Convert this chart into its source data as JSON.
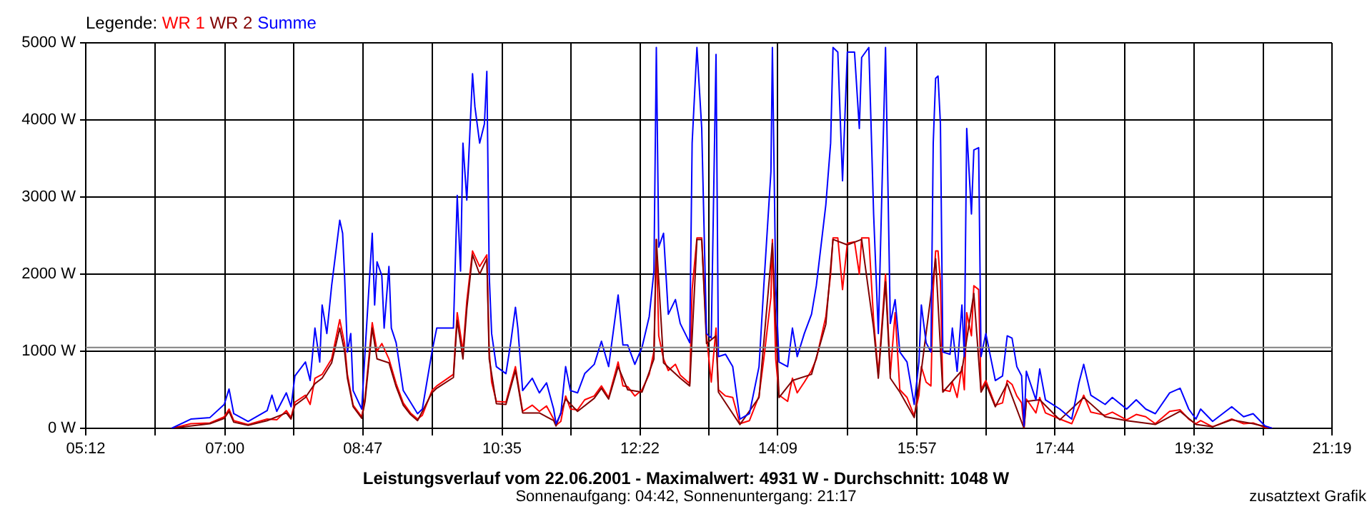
{
  "chart_data": {
    "type": "line",
    "title": "Leistungsverlauf vom 22.06.2001 - Maximalwert: 4931 W - Durchschnitt: 1048 W",
    "subtitle": "Sonnenaufgang: 04:42, Sonnenuntergang: 21:17",
    "legend_title": "Legende:",
    "annotations": [
      "zusatztext Grafik"
    ],
    "xlim": [
      5.2,
      21.3167
    ],
    "xticks": [
      {
        "value": 5.2,
        "label": "05:12"
      },
      {
        "value": 6.1,
        "label": null
      },
      {
        "value": 7.0,
        "label": "07:00"
      },
      {
        "value": 7.892,
        "label": null
      },
      {
        "value": 8.7833,
        "label": "08:47"
      },
      {
        "value": 9.683,
        "label": null
      },
      {
        "value": 10.5833,
        "label": "10:35"
      },
      {
        "value": 11.475,
        "label": null
      },
      {
        "value": 12.3667,
        "label": "12:22"
      },
      {
        "value": 13.258,
        "label": null
      },
      {
        "value": 14.15,
        "label": "14:09"
      },
      {
        "value": 15.05,
        "label": null
      },
      {
        "value": 15.95,
        "label": "15:57"
      },
      {
        "value": 16.842,
        "label": null
      },
      {
        "value": 17.7333,
        "label": "17:44"
      },
      {
        "value": 18.633,
        "label": null
      },
      {
        "value": 19.5333,
        "label": "19:32"
      },
      {
        "value": 20.425,
        "label": null
      },
      {
        "value": 21.3167,
        "label": "21:19"
      }
    ],
    "ylim": [
      0,
      5000
    ],
    "yticks": [
      {
        "value": 0,
        "label": "0 W"
      },
      {
        "value": 1000,
        "label": "1000 W"
      },
      {
        "value": 2000,
        "label": "2000 W"
      },
      {
        "value": 3000,
        "label": "3000 W"
      },
      {
        "value": 4000,
        "label": "4000 W"
      },
      {
        "value": 5000,
        "label": "5000 W"
      }
    ],
    "grid": true,
    "legend": "top left",
    "marker": "none",
    "line_style": "solid",
    "ref_lines": [
      {
        "axis": "y",
        "value": 1048,
        "color": "#808080"
      }
    ],
    "series": [
      {
        "name": "WR 1",
        "color": "#ff0000",
        "x": [
          6.31,
          6.559,
          6.806,
          6.991,
          7.053,
          7.114,
          7.3,
          7.546,
          7.67,
          7.794,
          7.855,
          7.905,
          8.041,
          8.102,
          8.164,
          8.257,
          8.38,
          8.485,
          8.547,
          8.584,
          8.658,
          8.769,
          8.812,
          8.905,
          8.967,
          9.029,
          9.121,
          9.214,
          9.306,
          9.399,
          9.491,
          9.553,
          9.677,
          9.739,
          9.955,
          10.004,
          10.078,
          10.128,
          10.202,
          10.294,
          10.387,
          10.418,
          10.449,
          10.51,
          10.634,
          10.757,
          10.85,
          10.974,
          11.066,
          11.159,
          11.251,
          11.282,
          11.344,
          11.406,
          11.468,
          11.56,
          11.653,
          11.776,
          11.869,
          11.962,
          12.085,
          12.147,
          12.209,
          12.301,
          12.394,
          12.487,
          12.548,
          12.579,
          12.61,
          12.672,
          12.734,
          12.826,
          12.888,
          13.011,
          13.042,
          13.104,
          13.166,
          13.228,
          13.289,
          13.351,
          13.382,
          13.474,
          13.567,
          13.66,
          13.783,
          13.907,
          13.969,
          14.061,
          14.08,
          14.123,
          14.166,
          14.277,
          14.339,
          14.401,
          14.493,
          14.586,
          14.648,
          14.771,
          14.833,
          14.864,
          14.926,
          14.987,
          15.049,
          15.142,
          15.204,
          15.234,
          15.327,
          15.389,
          15.45,
          15.543,
          15.605,
          15.667,
          15.728,
          15.821,
          15.914,
          15.975,
          16.006,
          16.068,
          16.13,
          16.16,
          16.191,
          16.222,
          16.253,
          16.284,
          16.377,
          16.407,
          16.469,
          16.531,
          16.562,
          16.593,
          16.654,
          16.685,
          16.747,
          16.778,
          16.84,
          16.963,
          17.056,
          17.117,
          17.179,
          17.241,
          17.303,
          17.334,
          17.364,
          17.488,
          17.537,
          17.611,
          17.797,
          17.951,
          18.044,
          18.106,
          18.198,
          18.383,
          18.476,
          18.661,
          18.785,
          18.908,
          19.032,
          19.217,
          19.353,
          19.464,
          19.557,
          19.618,
          19.773,
          20.02,
          20.174,
          20.297,
          20.452,
          20.545
        ],
        "values": [
          0,
          60,
          70,
          150,
          250,
          100,
          50,
          120,
          110,
          230,
          140,
          340,
          430,
          310,
          650,
          700,
          900,
          1410,
          1100,
          700,
          300,
          150,
          400,
          1370,
          1000,
          1100,
          900,
          580,
          330,
          200,
          120,
          170,
          490,
          550,
          700,
          1500,
          1000,
          1650,
          2300,
          2100,
          2250,
          1000,
          600,
          350,
          340,
          800,
          220,
          300,
          220,
          290,
          120,
          40,
          90,
          420,
          250,
          240,
          370,
          420,
          550,
          400,
          860,
          550,
          540,
          420,
          500,
          700,
          1000,
          2450,
          1200,
          900,
          750,
          830,
          690,
          580,
          1800,
          2470,
          2470,
          1200,
          600,
          1300,
          500,
          420,
          400,
          60,
          100,
          420,
          900,
          1700,
          2450,
          900,
          430,
          350,
          650,
          460,
          600,
          750,
          900,
          1450,
          2000,
          2470,
          2470,
          1800,
          2400,
          2420,
          2000,
          2470,
          2470,
          1400,
          700,
          2000,
          700,
          1500,
          500,
          400,
          160,
          430,
          800,
          600,
          550,
          1800,
          2300,
          2300,
          1900,
          500,
          480,
          600,
          400,
          800,
          500,
          1500,
          1200,
          1850,
          1800,
          500,
          620,
          300,
          330,
          620,
          570,
          420,
          330,
          0,
          380,
          200,
          400,
          200,
          120,
          60,
          280,
          430,
          210,
          170,
          210,
          110,
          180,
          150,
          60,
          220,
          240,
          120,
          60,
          100,
          20,
          120,
          60,
          70,
          10,
          0
        ]
      },
      {
        "name": "WR 2",
        "color": "#800000",
        "x": [
          6.31,
          6.806,
          6.991,
          7.053,
          7.114,
          7.3,
          7.546,
          7.794,
          7.855,
          7.905,
          8.041,
          8.164,
          8.257,
          8.38,
          8.485,
          8.547,
          8.584,
          8.658,
          8.769,
          8.812,
          8.905,
          8.967,
          9.121,
          9.214,
          9.306,
          9.399,
          9.491,
          9.677,
          9.739,
          9.955,
          10.004,
          10.078,
          10.128,
          10.202,
          10.294,
          10.387,
          10.418,
          10.51,
          10.634,
          10.757,
          10.85,
          11.066,
          11.251,
          11.282,
          11.406,
          11.56,
          11.776,
          11.869,
          11.962,
          12.085,
          12.209,
          12.394,
          12.548,
          12.579,
          12.672,
          12.888,
          13.011,
          13.104,
          13.166,
          13.228,
          13.351,
          13.382,
          13.66,
          13.907,
          14.08,
          14.166,
          14.339,
          14.586,
          14.771,
          14.864,
          15.049,
          15.234,
          15.389,
          15.45,
          15.543,
          15.605,
          15.728,
          15.914,
          16.006,
          16.191,
          16.284,
          16.531,
          16.685,
          16.778,
          16.84,
          16.963,
          17.117,
          17.334,
          17.364,
          17.537,
          17.797,
          18.106,
          18.383,
          18.661,
          19.032,
          19.353,
          19.557,
          19.773,
          20.02,
          20.297,
          20.545
        ],
        "values": [
          0,
          60,
          130,
          220,
          80,
          40,
          100,
          200,
          120,
          300,
          400,
          580,
          650,
          850,
          1300,
          1000,
          650,
          280,
          130,
          350,
          1300,
          900,
          850,
          540,
          300,
          180,
          100,
          460,
          520,
          660,
          1400,
          900,
          1550,
          2250,
          2000,
          2200,
          900,
          320,
          310,
          750,
          200,
          200,
          100,
          30,
          380,
          220,
          390,
          520,
          380,
          800,
          500,
          470,
          900,
          2450,
          850,
          650,
          550,
          2450,
          2450,
          1100,
          1200,
          470,
          50,
          400,
          2400,
          400,
          620,
          700,
          1350,
          2450,
          2380,
          2450,
          1300,
          650,
          1900,
          650,
          470,
          140,
          750,
          2200,
          470,
          750,
          1750,
          470,
          580,
          280,
          580,
          0,
          350,
          370,
          110,
          400,
          150,
          100,
          50,
          220,
          50,
          20,
          110,
          60,
          0
        ]
      },
      {
        "name": "Summe",
        "color": "#0000ff",
        "x": [
          6.31,
          6.559,
          6.806,
          6.991,
          7.053,
          7.114,
          7.3,
          7.546,
          7.608,
          7.67,
          7.794,
          7.855,
          7.905,
          8.041,
          8.102,
          8.164,
          8.226,
          8.257,
          8.318,
          8.38,
          8.442,
          8.485,
          8.522,
          8.547,
          8.584,
          8.627,
          8.658,
          8.769,
          8.812,
          8.905,
          8.936,
          8.967,
          9.029,
          9.059,
          9.121,
          9.152,
          9.214,
          9.306,
          9.399,
          9.491,
          9.553,
          9.677,
          9.739,
          9.955,
          10.004,
          10.047,
          10.078,
          10.128,
          10.202,
          10.233,
          10.294,
          10.356,
          10.387,
          10.418,
          10.449,
          10.51,
          10.634,
          10.696,
          10.757,
          10.788,
          10.85,
          10.974,
          11.066,
          11.159,
          11.251,
          11.282,
          11.344,
          11.406,
          11.468,
          11.56,
          11.653,
          11.776,
          11.869,
          11.962,
          12.085,
          12.147,
          12.209,
          12.301,
          12.394,
          12.487,
          12.548,
          12.579,
          12.61,
          12.672,
          12.734,
          12.826,
          12.888,
          13.011,
          13.042,
          13.104,
          13.166,
          13.228,
          13.289,
          13.351,
          13.382,
          13.474,
          13.567,
          13.66,
          13.783,
          13.907,
          13.969,
          14.061,
          14.08,
          14.123,
          14.166,
          14.277,
          14.339,
          14.401,
          14.493,
          14.586,
          14.648,
          14.771,
          14.833,
          14.864,
          14.926,
          14.987,
          15.049,
          15.142,
          15.204,
          15.234,
          15.327,
          15.389,
          15.45,
          15.543,
          15.605,
          15.667,
          15.728,
          15.821,
          15.914,
          15.975,
          16.006,
          16.068,
          16.13,
          16.16,
          16.191,
          16.222,
          16.253,
          16.284,
          16.377,
          16.407,
          16.469,
          16.531,
          16.562,
          16.593,
          16.654,
          16.685,
          16.747,
          16.778,
          16.84,
          16.963,
          17.056,
          17.117,
          17.179,
          17.241,
          17.303,
          17.334,
          17.364,
          17.488,
          17.537,
          17.611,
          17.797,
          17.951,
          18.044,
          18.106,
          18.198,
          18.383,
          18.476,
          18.661,
          18.785,
          18.908,
          19.032,
          19.217,
          19.353,
          19.464,
          19.557,
          19.618,
          19.773,
          20.02,
          20.174,
          20.297,
          20.452,
          20.545
        ],
        "values": [
          0,
          120,
          140,
          310,
          510,
          190,
          90,
          230,
          430,
          220,
          460,
          280,
          680,
          860,
          620,
          1300,
          860,
          1600,
          1230,
          1850,
          2350,
          2700,
          2530,
          1980,
          990,
          1230,
          490,
          250,
          990,
          2530,
          1600,
          2160,
          1980,
          1300,
          2100,
          1300,
          1110,
          490,
          340,
          190,
          250,
          990,
          1300,
          1300,
          3020,
          2040,
          3700,
          2960,
          4600,
          4170,
          3700,
          3950,
          4630,
          1980,
          1230,
          800,
          710,
          1110,
          1570,
          1300,
          490,
          650,
          460,
          590,
          250,
          60,
          190,
          800,
          490,
          460,
          710,
          830,
          1130,
          800,
          1730,
          1080,
          1080,
          830,
          1050,
          1450,
          2040,
          4940,
          2350,
          2530,
          1480,
          1670,
          1360,
          1110,
          3700,
          4940,
          3890,
          1230,
          1170,
          4850,
          930,
          960,
          800,
          120,
          190,
          800,
          1850,
          3330,
          4940,
          1850,
          860,
          800,
          1300,
          930,
          1230,
          1480,
          1850,
          2900,
          3700,
          4940,
          4880,
          3210,
          4880,
          4880,
          3890,
          4810,
          4940,
          2780,
          1230,
          4940,
          1360,
          1670,
          990,
          860,
          310,
          860,
          1600,
          1110,
          990,
          3700,
          4540,
          4570,
          3950,
          990,
          960,
          1300,
          740,
          1600,
          930,
          3890,
          2780,
          3610,
          3640,
          930,
          1230,
          620,
          680,
          1200,
          1170,
          800,
          680,
          30,
          740,
          370,
          770,
          370,
          250,
          120,
          590,
          830,
          430,
          310,
          400,
          250,
          370,
          250,
          190,
          460,
          520,
          250,
          120,
          250,
          90,
          280,
          150,
          190,
          30,
          0
        ]
      }
    ]
  }
}
